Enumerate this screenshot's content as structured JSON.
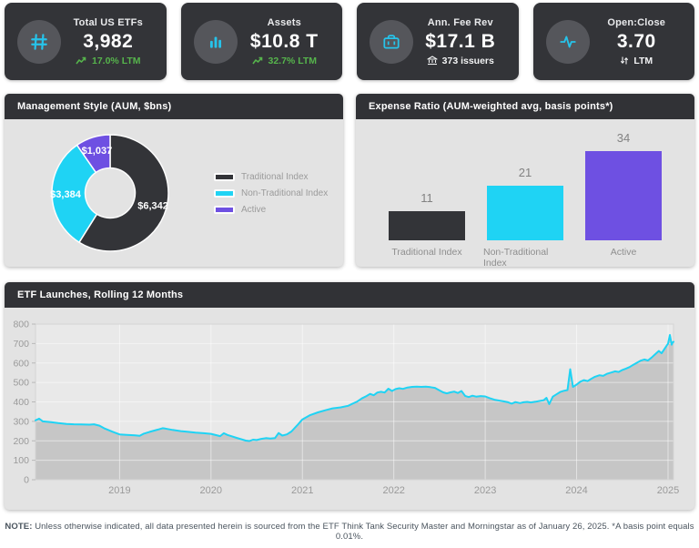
{
  "header_cards": [
    {
      "icon": "hash-icon",
      "title": "Total US ETFs",
      "value": "3,982",
      "sub_icon": "trend-up-icon",
      "sub": "17.0% LTM",
      "sub_style": "positive"
    },
    {
      "icon": "column-chart-icon",
      "title": "Assets",
      "value": "$10.8 T",
      "sub_icon": "trend-up-icon",
      "sub": "32.7% LTM",
      "sub_style": "positive"
    },
    {
      "icon": "briefcase-icon",
      "title": "Ann. Fee Rev",
      "value": "$17.1 B",
      "sub_icon": "bank-icon",
      "sub": "373 issuers",
      "sub_style": "neutral"
    },
    {
      "icon": "pulse-icon",
      "title": "Open:Close",
      "value": "3.70",
      "sub_icon": "swap-arrows-icon",
      "sub": "LTM",
      "sub_style": "neutral"
    }
  ],
  "panels": {
    "management_style": {
      "title": "Management Style (AUM, $bns)"
    },
    "expense_ratio": {
      "title": "Expense Ratio (AUM-weighted avg, basis points*)"
    },
    "etf_launches": {
      "title": "ETF Launches, Rolling 12 Months"
    }
  },
  "footer": {
    "label": "NOTE:",
    "text": " Unless otherwise indicated, all data presented herein is sourced from the ETF Think Tank Security Master and Morningstar as of January 26, 2025. *A basis point equals 0.01%."
  },
  "colors": {
    "dark": "#333438",
    "cyan": "#1fd3f4",
    "purple": "#6e50e2",
    "green": "#56b44c",
    "panel_body": "#e3e3e3",
    "plot_bg": "#e9e9e9",
    "area_fill": "#c6c6c6",
    "gridline": "rgba(255,255,255,0.5)",
    "tick_text": "#9a9a9a"
  },
  "chart_data": [
    {
      "type": "pie",
      "donut": true,
      "title": "Management Style (AUM, $bns)",
      "labels": [
        "Traditional Index",
        "Non-Traditional Index",
        "Active"
      ],
      "values": [
        6342,
        3384,
        1037
      ],
      "value_labels": [
        "$6,342",
        "$3,384",
        "$1,037"
      ],
      "colors": [
        "#333438",
        "#1fd3f4",
        "#6e50e2"
      ],
      "legend_position": "right"
    },
    {
      "type": "bar",
      "title": "Expense Ratio (AUM-weighted avg, basis points*)",
      "categories": [
        "Traditional Index",
        "Non-Traditional Index",
        "Active"
      ],
      "values": [
        11,
        21,
        34
      ],
      "colors": [
        "#333438",
        "#1fd3f4",
        "#6e50e2"
      ],
      "ylabel": "basis points",
      "ylim": [
        0,
        40
      ],
      "grid": false
    },
    {
      "type": "area",
      "title": "ETF Launches, Rolling 12 Months",
      "xlabel": "",
      "ylabel": "",
      "ylim": [
        0,
        800
      ],
      "y_ticks": [
        0,
        100,
        200,
        300,
        400,
        500,
        600,
        700,
        800
      ],
      "x_ticks": [
        2019,
        2020,
        2021,
        2022,
        2023,
        2024,
        2025
      ],
      "xlim": [
        2018.08,
        2025.06
      ],
      "grid": true,
      "legend_position": "none",
      "series": [
        {
          "name": "ETF Launches (rolling 12 months)",
          "points": [
            [
              2018.08,
              305
            ],
            [
              2018.12,
              314
            ],
            [
              2018.16,
              300
            ],
            [
              2018.25,
              296
            ],
            [
              2018.33,
              291
            ],
            [
              2018.42,
              287
            ],
            [
              2018.5,
              285
            ],
            [
              2018.58,
              284
            ],
            [
              2018.67,
              283
            ],
            [
              2018.72,
              285
            ],
            [
              2018.78,
              278
            ],
            [
              2018.83,
              265
            ],
            [
              2018.92,
              247
            ],
            [
              2019.0,
              233
            ],
            [
              2019.08,
              230
            ],
            [
              2019.17,
              228
            ],
            [
              2019.22,
              226
            ],
            [
              2019.26,
              236
            ],
            [
              2019.33,
              246
            ],
            [
              2019.42,
              258
            ],
            [
              2019.47,
              265
            ],
            [
              2019.5,
              263
            ],
            [
              2019.58,
              256
            ],
            [
              2019.67,
              250
            ],
            [
              2019.75,
              246
            ],
            [
              2019.83,
              242
            ],
            [
              2019.92,
              239
            ],
            [
              2020.0,
              236
            ],
            [
              2020.06,
              229
            ],
            [
              2020.1,
              224
            ],
            [
              2020.14,
              239
            ],
            [
              2020.18,
              230
            ],
            [
              2020.22,
              224
            ],
            [
              2020.28,
              215
            ],
            [
              2020.33,
              208
            ],
            [
              2020.38,
              201
            ],
            [
              2020.42,
              199
            ],
            [
              2020.46,
              206
            ],
            [
              2020.5,
              204
            ],
            [
              2020.55,
              210
            ],
            [
              2020.6,
              214
            ],
            [
              2020.65,
              212
            ],
            [
              2020.7,
              214
            ],
            [
              2020.74,
              240
            ],
            [
              2020.78,
              227
            ],
            [
              2020.83,
              233
            ],
            [
              2020.88,
              248
            ],
            [
              2020.94,
              278
            ],
            [
              2021.0,
              310
            ],
            [
              2021.08,
              331
            ],
            [
              2021.17,
              346
            ],
            [
              2021.25,
              357
            ],
            [
              2021.33,
              367
            ],
            [
              2021.42,
              372
            ],
            [
              2021.5,
              380
            ],
            [
              2021.55,
              391
            ],
            [
              2021.6,
              402
            ],
            [
              2021.65,
              418
            ],
            [
              2021.7,
              430
            ],
            [
              2021.74,
              441
            ],
            [
              2021.78,
              434
            ],
            [
              2021.82,
              448
            ],
            [
              2021.86,
              452
            ],
            [
              2021.9,
              448
            ],
            [
              2021.94,
              468
            ],
            [
              2021.98,
              456
            ],
            [
              2022.02,
              466
            ],
            [
              2022.06,
              470
            ],
            [
              2022.1,
              467
            ],
            [
              2022.15,
              474
            ],
            [
              2022.2,
              477
            ],
            [
              2022.25,
              478
            ],
            [
              2022.3,
              477
            ],
            [
              2022.35,
              478
            ],
            [
              2022.4,
              476
            ],
            [
              2022.45,
              472
            ],
            [
              2022.5,
              459
            ],
            [
              2022.54,
              449
            ],
            [
              2022.58,
              444
            ],
            [
              2022.62,
              449
            ],
            [
              2022.66,
              453
            ],
            [
              2022.7,
              446
            ],
            [
              2022.74,
              456
            ],
            [
              2022.78,
              431
            ],
            [
              2022.82,
              425
            ],
            [
              2022.86,
              432
            ],
            [
              2022.9,
              427
            ],
            [
              2022.95,
              430
            ],
            [
              2023.0,
              428
            ],
            [
              2023.05,
              419
            ],
            [
              2023.1,
              411
            ],
            [
              2023.15,
              407
            ],
            [
              2023.2,
              403
            ],
            [
              2023.25,
              398
            ],
            [
              2023.29,
              391
            ],
            [
              2023.33,
              399
            ],
            [
              2023.38,
              394
            ],
            [
              2023.42,
              398
            ],
            [
              2023.46,
              400
            ],
            [
              2023.5,
              397
            ],
            [
              2023.55,
              401
            ],
            [
              2023.6,
              405
            ],
            [
              2023.64,
              409
            ],
            [
              2023.67,
              421
            ],
            [
              2023.7,
              389
            ],
            [
              2023.74,
              427
            ],
            [
              2023.78,
              439
            ],
            [
              2023.82,
              451
            ],
            [
              2023.86,
              457
            ],
            [
              2023.9,
              461
            ],
            [
              2023.93,
              568
            ],
            [
              2023.96,
              477
            ],
            [
              2024.0,
              489
            ],
            [
              2024.04,
              504
            ],
            [
              2024.08,
              512
            ],
            [
              2024.12,
              507
            ],
            [
              2024.16,
              519
            ],
            [
              2024.2,
              529
            ],
            [
              2024.25,
              537
            ],
            [
              2024.29,
              534
            ],
            [
              2024.33,
              544
            ],
            [
              2024.38,
              551
            ],
            [
              2024.42,
              557
            ],
            [
              2024.46,
              554
            ],
            [
              2024.5,
              564
            ],
            [
              2024.54,
              571
            ],
            [
              2024.58,
              579
            ],
            [
              2024.62,
              591
            ],
            [
              2024.66,
              601
            ],
            [
              2024.7,
              612
            ],
            [
              2024.74,
              618
            ],
            [
              2024.78,
              613
            ],
            [
              2024.82,
              628
            ],
            [
              2024.86,
              645
            ],
            [
              2024.9,
              662
            ],
            [
              2024.93,
              650
            ],
            [
              2024.96,
              672
            ],
            [
              2025.0,
              700
            ],
            [
              2025.02,
              744
            ],
            [
              2025.04,
              694
            ],
            [
              2025.05,
              706
            ],
            [
              2025.06,
              709
            ]
          ]
        }
      ]
    }
  ]
}
